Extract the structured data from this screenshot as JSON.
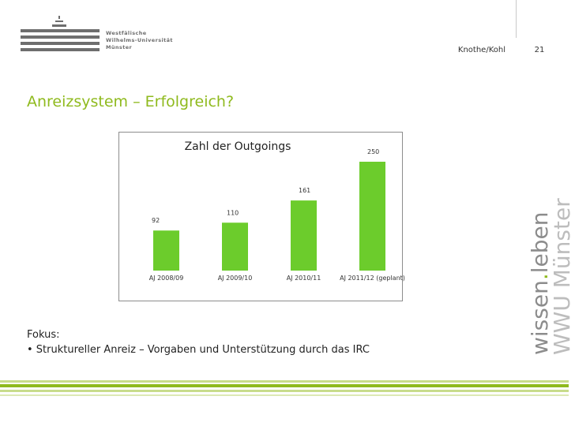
{
  "header": {
    "logo_lines": [
      "Westfälische",
      "Wilhelms-Universität",
      "Münster"
    ],
    "authors": "Knothe/Kohl",
    "page_number": "21"
  },
  "slide": {
    "title": "Anreizsystem – Erfolgreich?",
    "focus_label": "Fokus:",
    "focus_bullet": "• Struktureller Anreiz – Vorgaben und Unterstützung durch das IRC"
  },
  "side_tagline": {
    "line1_part1": "wissen",
    "line1_dot": ".",
    "line1_part2": "leben",
    "line2": "WWU Münster"
  },
  "colors": {
    "accent_green": "#8fba1e",
    "bar_green": "#6ccc2c",
    "gray_text": "#8c8c8c"
  },
  "chart_data": {
    "type": "bar",
    "title": "Zahl der Outgoings",
    "categories": [
      "AJ 2008/09",
      "AJ 2009/10",
      "AJ 2010/11",
      "AJ 2011/12 (geplant)"
    ],
    "values": [
      92,
      110,
      161,
      250
    ],
    "data_labels": [
      "92",
      "110",
      "161",
      "250"
    ],
    "ylim": [
      0,
      250
    ],
    "grid": false,
    "legend": "none"
  }
}
